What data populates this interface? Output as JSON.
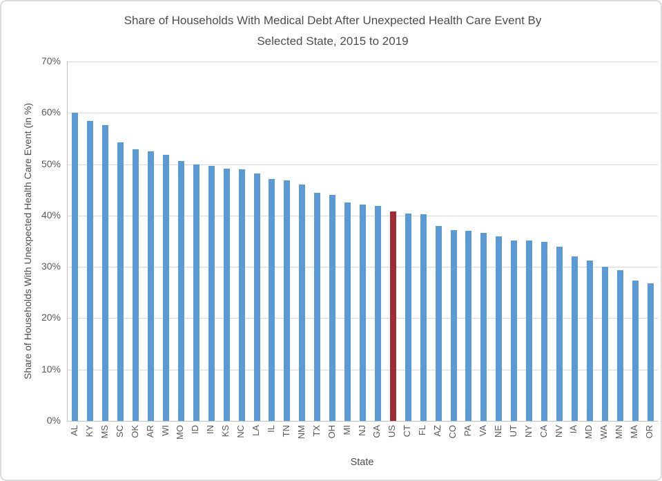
{
  "header": {
    "title_line1": "Share of Households With Medical Debt After Unexpected Health Care Event By",
    "title_line2": "Selected State, 2015 to 2019"
  },
  "chart_data": {
    "type": "bar",
    "title": "Share of Households With Medical Debt After Unexpected Health Care Event By Selected State, 2015 to 2019",
    "xlabel": "State",
    "ylabel": "Share of Households With Unexpected Health Care Event (in %)",
    "ylim": [
      0,
      70
    ],
    "ytick_step": 10,
    "ytick_suffix": "%",
    "grid": true,
    "legend_position": "none",
    "categories": [
      "AL",
      "KY",
      "MS",
      "SC",
      "OK",
      "AR",
      "WI",
      "MO",
      "ID",
      "IN",
      "KS",
      "NC",
      "LA",
      "IL",
      "TN",
      "NM",
      "TX",
      "OH",
      "MI",
      "NJ",
      "GA",
      "US",
      "CT",
      "FL",
      "AZ",
      "CO",
      "PA",
      "VA",
      "NE",
      "UT",
      "NY",
      "CA",
      "NV",
      "IA",
      "MD",
      "WA",
      "MN",
      "MA",
      "OR"
    ],
    "values": [
      60.0,
      58.4,
      57.6,
      54.2,
      52.9,
      52.5,
      51.8,
      50.6,
      50.0,
      49.7,
      49.2,
      49.0,
      48.2,
      47.1,
      46.8,
      46.1,
      44.4,
      44.0,
      42.5,
      42.2,
      41.9,
      40.8,
      40.4,
      40.2,
      38.0,
      37.1,
      37.0,
      36.6,
      35.9,
      35.2,
      35.1,
      34.9,
      33.9,
      32.0,
      31.3,
      30.0,
      29.4,
      27.3,
      26.8
    ],
    "highlight_category": "US",
    "colors": {
      "bar": "#5b9bd5",
      "highlight": "#a02b35",
      "grid": "#d9d9d9",
      "axis": "#bfbfbf",
      "text": "#595959"
    }
  }
}
